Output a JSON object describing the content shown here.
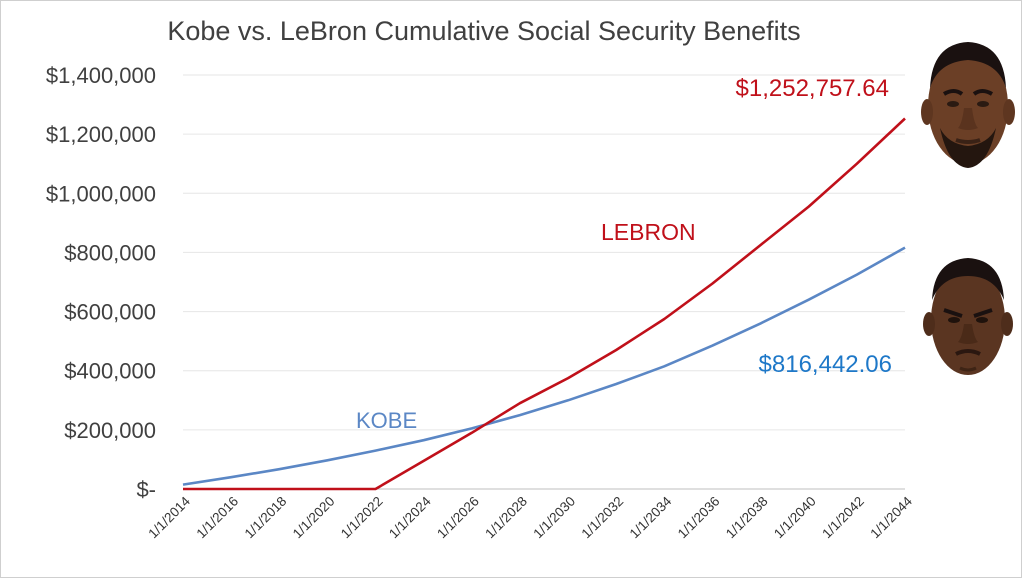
{
  "chart_data": {
    "type": "line",
    "title": "Kobe vs. LeBron Cumulative Social Security Benefits",
    "xlabel": "",
    "ylabel": "",
    "x_tick_labels": [
      "1/1/2014",
      "1/1/2016",
      "1/1/2018",
      "1/1/2020",
      "1/1/2022",
      "1/1/2024",
      "1/1/2026",
      "1/1/2028",
      "1/1/2030",
      "1/1/2032",
      "1/1/2034",
      "1/1/2036",
      "1/1/2038",
      "1/1/2040",
      "1/1/2042",
      "1/1/2044"
    ],
    "xlim": [
      2014,
      2044
    ],
    "ylim": [
      0,
      1400000
    ],
    "y_ticks": [
      0,
      200000,
      400000,
      600000,
      800000,
      1000000,
      1200000,
      1400000
    ],
    "y_tick_labels": [
      "$-",
      "$200,000",
      "$400,000",
      "$600,000",
      "$800,000",
      "$1,000,000",
      "$1,200,000",
      "$1,400,000"
    ],
    "grid": "horizontal",
    "series": [
      {
        "name": "KOBE",
        "color": "#5b87c5",
        "label_color": "#5b87c5",
        "end_value_label": "$816,442.06",
        "end_label_color": "#1e78c8",
        "points": [
          [
            2014,
            15000
          ],
          [
            2016,
            40000
          ],
          [
            2018,
            67000
          ],
          [
            2020,
            97000
          ],
          [
            2022,
            130000
          ],
          [
            2024,
            165000
          ],
          [
            2026,
            205000
          ],
          [
            2028,
            250000
          ],
          [
            2030,
            300000
          ],
          [
            2032,
            355000
          ],
          [
            2034,
            415000
          ],
          [
            2036,
            485000
          ],
          [
            2038,
            560000
          ],
          [
            2040,
            640000
          ],
          [
            2042,
            725000
          ],
          [
            2044,
            816442.06
          ]
        ]
      },
      {
        "name": "LEBRON",
        "color": "#c0101a",
        "label_color": "#c0101a",
        "end_value_label": "$1,252,757.64",
        "end_label_color": "#c0101a",
        "points": [
          [
            2014,
            0
          ],
          [
            2016,
            0
          ],
          [
            2018,
            0
          ],
          [
            2020,
            0
          ],
          [
            2022,
            0
          ],
          [
            2024,
            95000
          ],
          [
            2026,
            190000
          ],
          [
            2028,
            290000
          ],
          [
            2030,
            375000
          ],
          [
            2032,
            470000
          ],
          [
            2034,
            575000
          ],
          [
            2036,
            695000
          ],
          [
            2038,
            825000
          ],
          [
            2040,
            955000
          ],
          [
            2042,
            1100000
          ],
          [
            2044,
            1252757.64
          ]
        ]
      }
    ]
  },
  "faces": [
    {
      "icon": "lebron-face-icon",
      "skin": "#6b3f26",
      "hair": "#1a1110"
    },
    {
      "icon": "kobe-face-icon",
      "skin": "#5a3521",
      "hair": "#1a1110"
    }
  ]
}
